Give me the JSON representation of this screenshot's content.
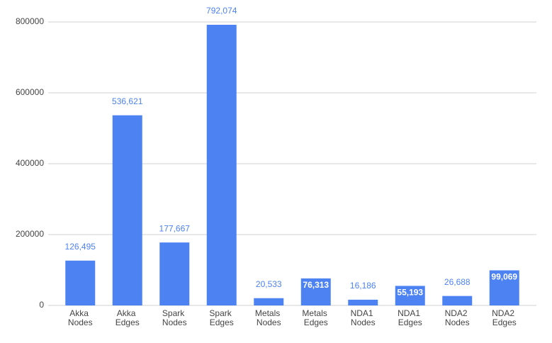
{
  "chart_data": {
    "type": "bar",
    "categories": [
      "Akka Nodes",
      "Akka Edges",
      "Spark Nodes",
      "Spark Edges",
      "Metals Nodes",
      "Metals Edges",
      "NDA1 Nodes",
      "NDA1 Edges",
      "NDA2 Nodes",
      "NDA2 Edges"
    ],
    "values": [
      126495,
      536621,
      177667,
      792074,
      20533,
      76313,
      16186,
      55193,
      26688,
      99069
    ],
    "value_labels": [
      "126,495",
      "536,621",
      "177,667",
      "792,074",
      "20,533",
      "76,313",
      "16,186",
      "55,193",
      "26,688",
      "99,069"
    ],
    "color": "#4d82f3",
    "ylim": [
      0,
      800000
    ],
    "yticks": [
      0,
      200000,
      400000,
      600000,
      800000
    ],
    "grid": true
  }
}
